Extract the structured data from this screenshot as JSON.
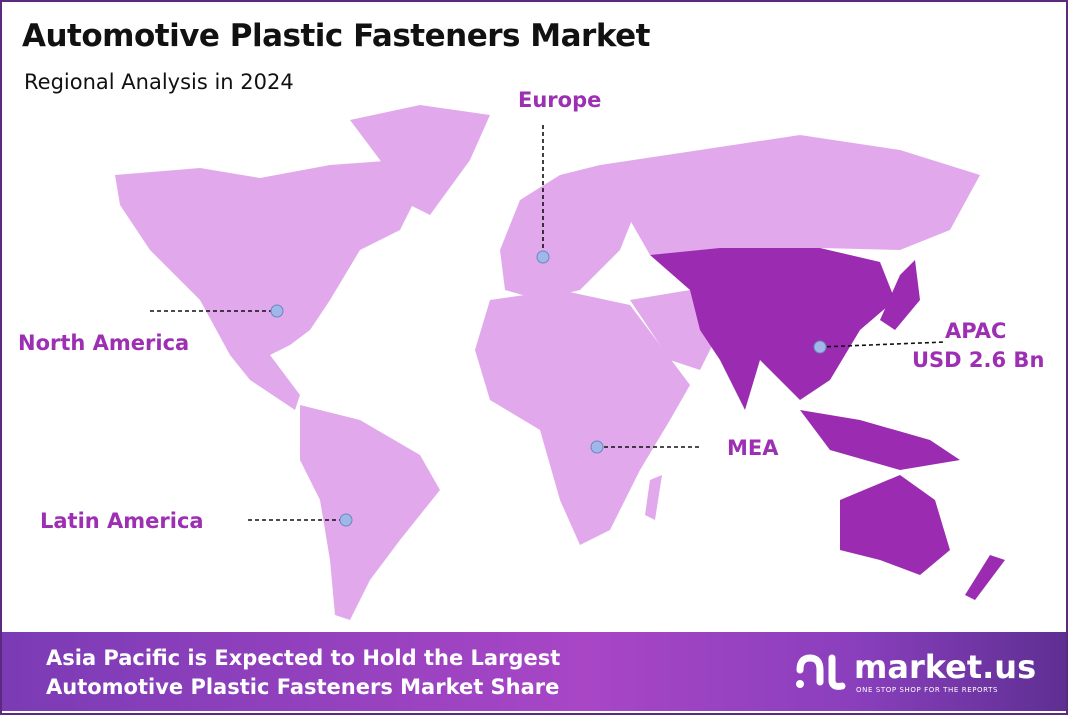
{
  "header": {
    "title": "Automotive Plastic Fasteners Market",
    "subtitle": "Regional Analysis in 2024"
  },
  "regions": [
    {
      "id": "north-america",
      "label": "North America"
    },
    {
      "id": "europe",
      "label": "Europe"
    },
    {
      "id": "apac",
      "label": "APAC",
      "value": "USD 2.6 Bn",
      "highlighted": true
    },
    {
      "id": "mea",
      "label": "MEA"
    },
    {
      "id": "latin-america",
      "label": "Latin America"
    }
  ],
  "footer": {
    "line1": "Asia Pacific is Expected to Hold the Largest",
    "line2": "Automotive Plastic Fasteners Market Share"
  },
  "logo": {
    "name": "market.us",
    "tagline": "ONE STOP SHOP FOR THE REPORTS"
  },
  "colors": {
    "land": "#e1a9ec",
    "highlight": "#9b2bb0",
    "label": "#9d2fb3",
    "border": "#5b2a7e",
    "marker": "#9fb8e8"
  }
}
